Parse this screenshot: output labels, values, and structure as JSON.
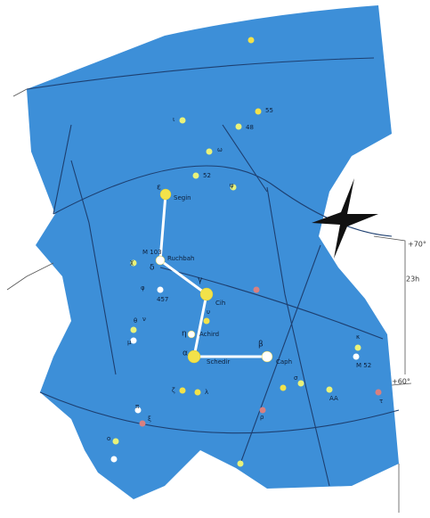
{
  "map": {
    "stars": [
      {
        "label": "ε"
      },
      {
        "label": "Segin"
      },
      {
        "label": "δ"
      },
      {
        "label": "Ruchbah"
      },
      {
        "label": "γ"
      },
      {
        "label": "Cih"
      },
      {
        "label": "η"
      },
      {
        "label": "Achird"
      },
      {
        "label": "α"
      },
      {
        "label": "Schedir"
      },
      {
        "label": "β"
      },
      {
        "label": "Caph"
      }
    ],
    "labels": [
      {
        "text": "55"
      },
      {
        "text": "48"
      },
      {
        "text": "ι"
      },
      {
        "text": "ω"
      },
      {
        "text": "ψ"
      },
      {
        "text": "52"
      },
      {
        "text": "M 103"
      },
      {
        "text": "χ"
      },
      {
        "text": "φ"
      },
      {
        "text": "457"
      },
      {
        "text": "ν"
      },
      {
        "text": "υ"
      },
      {
        "text": "θ"
      },
      {
        "text": "μ"
      },
      {
        "text": "ζ"
      },
      {
        "text": "λ"
      },
      {
        "text": "ξ"
      },
      {
        "text": "π"
      },
      {
        "text": "ο"
      },
      {
        "text": "κ"
      },
      {
        "text": "ρ"
      },
      {
        "text": "σ"
      },
      {
        "text": "τ"
      },
      {
        "text": "AA"
      },
      {
        "text": "M 52"
      }
    ],
    "coordinates": [
      {
        "text": "+70°"
      },
      {
        "text": "23h"
      },
      {
        "text": "+60°"
      }
    ]
  }
}
